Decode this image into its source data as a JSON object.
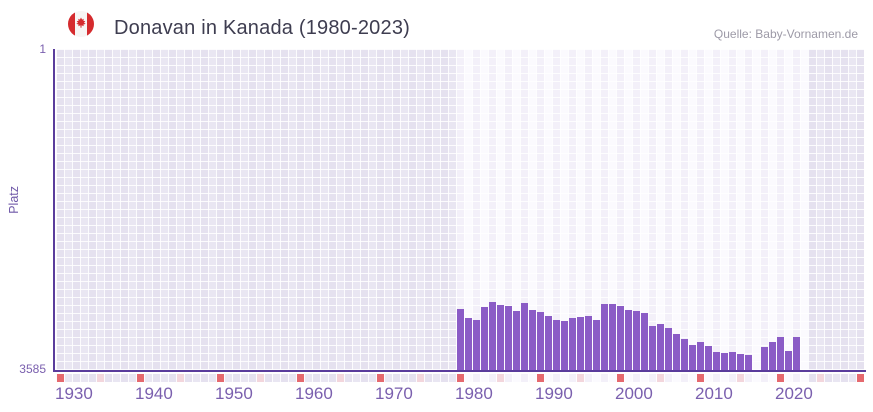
{
  "header": {
    "title": "Donavan in Kanada (1980-2023)",
    "source": "Quelle: Baby-Vornamen.de",
    "flag_icon": "canada-flag-icon"
  },
  "axes": {
    "y_label": "Platz",
    "y_tick_top": "1",
    "y_tick_bottom": "3585",
    "x_tick_years": [
      1930,
      1940,
      1950,
      1960,
      1970,
      1980,
      1990,
      2000,
      2010,
      2020
    ]
  },
  "colors": {
    "bar": "#8b5cc6",
    "axis": "#5a3c9c",
    "tick_text": "#7a5fae",
    "title_text": "#3e3d50",
    "source_text": "#9d9aa7",
    "decade_marker": "#e5696e",
    "half_decade_marker": "#f3d6dc",
    "background_outside_range": "#e7e3f0",
    "background_inside_range": "#f7f5fc",
    "flag_red": "#d52b2e"
  },
  "chart_data": {
    "type": "bar",
    "title": "Donavan in Kanada (1980-2023)",
    "xlabel": "",
    "ylabel": "Platz",
    "y_axis": {
      "top_rank": 1,
      "bottom_rank": 3585,
      "inverted": true,
      "note": "rank 1 at top; taller bar = better rank"
    },
    "x_axis_range": [
      1930,
      2030
    ],
    "highlight_range": [
      1980,
      2023
    ],
    "grid": true,
    "legend": false,
    "decade_markers": [
      1930,
      1940,
      1950,
      1960,
      1970,
      1980,
      1990,
      2000,
      2010,
      2020,
      2030
    ],
    "half_decade_markers": [
      1935,
      1945,
      1955,
      1965,
      1975,
      1985,
      1995,
      2005,
      2015,
      2025
    ],
    "missing_years": [
      2017,
      2023
    ],
    "series": [
      {
        "name": "Platz von Donavan in Kanada",
        "points": [
          {
            "year": 1980,
            "rank": 2913
          },
          {
            "year": 1981,
            "rank": 3014
          },
          {
            "year": 1982,
            "rank": 3036
          },
          {
            "year": 1983,
            "rank": 2891
          },
          {
            "year": 1984,
            "rank": 2835
          },
          {
            "year": 1985,
            "rank": 2868
          },
          {
            "year": 1986,
            "rank": 2879
          },
          {
            "year": 1987,
            "rank": 2935
          },
          {
            "year": 1988,
            "rank": 2846
          },
          {
            "year": 1989,
            "rank": 2924
          },
          {
            "year": 1990,
            "rank": 2946
          },
          {
            "year": 1991,
            "rank": 2991
          },
          {
            "year": 1992,
            "rank": 3036
          },
          {
            "year": 1993,
            "rank": 3047
          },
          {
            "year": 1994,
            "rank": 3014
          },
          {
            "year": 1995,
            "rank": 3003
          },
          {
            "year": 1996,
            "rank": 2991
          },
          {
            "year": 1997,
            "rank": 3036
          },
          {
            "year": 1998,
            "rank": 2857
          },
          {
            "year": 1999,
            "rank": 2857
          },
          {
            "year": 2000,
            "rank": 2879
          },
          {
            "year": 2001,
            "rank": 2924
          },
          {
            "year": 2002,
            "rank": 2935
          },
          {
            "year": 2003,
            "rank": 2957
          },
          {
            "year": 2004,
            "rank": 3103
          },
          {
            "year": 2005,
            "rank": 3081
          },
          {
            "year": 2006,
            "rank": 3125
          },
          {
            "year": 2007,
            "rank": 3193
          },
          {
            "year": 2008,
            "rank": 3249
          },
          {
            "year": 2009,
            "rank": 3316
          },
          {
            "year": 2010,
            "rank": 3282
          },
          {
            "year": 2011,
            "rank": 3327
          },
          {
            "year": 2012,
            "rank": 3394
          },
          {
            "year": 2013,
            "rank": 3405
          },
          {
            "year": 2014,
            "rank": 3394
          },
          {
            "year": 2015,
            "rank": 3417
          },
          {
            "year": 2016,
            "rank": 3428
          },
          {
            "year": 2017,
            "rank": null
          },
          {
            "year": 2018,
            "rank": 3338
          },
          {
            "year": 2019,
            "rank": 3282
          },
          {
            "year": 2020,
            "rank": 3226
          },
          {
            "year": 2021,
            "rank": 3383
          },
          {
            "year": 2022,
            "rank": 3226
          },
          {
            "year": 2023,
            "rank": null
          }
        ]
      }
    ]
  }
}
